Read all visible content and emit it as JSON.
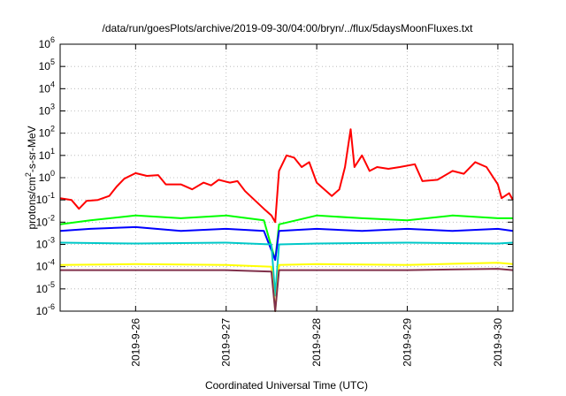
{
  "chart_data": {
    "type": "line",
    "title": "/data/run/goesPlots/archive/2019-09-30/04:00/bryn/../flux/5daysMoonFluxes.txt",
    "xlabel": "Coordinated Universal Time (UTC)",
    "ylabel": {
      "prefix": "protons/cm",
      "sup": "2",
      "suffix": "-s-sr-MeV"
    },
    "yscale": "log",
    "ylim": [
      1e-06,
      1000000.0
    ],
    "y_ticks": [
      {
        "value": 1e-06,
        "base": "10",
        "exp": "-6"
      },
      {
        "value": 1e-05,
        "base": "10",
        "exp": "-5"
      },
      {
        "value": 0.0001,
        "base": "10",
        "exp": "-4"
      },
      {
        "value": 0.001,
        "base": "10",
        "exp": "-3"
      },
      {
        "value": 0.01,
        "base": "10",
        "exp": "-2"
      },
      {
        "value": 0.1,
        "base": "10",
        "exp": "-1"
      },
      {
        "value": 1,
        "base": "10",
        "exp": "0"
      },
      {
        "value": 10.0,
        "base": "10",
        "exp": "1"
      },
      {
        "value": 100.0,
        "base": "10",
        "exp": "2"
      },
      {
        "value": 1000.0,
        "base": "10",
        "exp": "3"
      },
      {
        "value": 10000.0,
        "base": "10",
        "exp": "4"
      },
      {
        "value": 100000.0,
        "base": "10",
        "exp": "5"
      },
      {
        "value": 1000000.0,
        "base": "10",
        "exp": "6"
      }
    ],
    "xlim": [
      "2019-09-25T04:00",
      "2019-09-30T04:00"
    ],
    "x_ticks": [
      {
        "value": "2019-09-26T00:00",
        "label": "2019-9-26"
      },
      {
        "value": "2019-09-27T00:00",
        "label": "2019-9-27"
      },
      {
        "value": "2019-09-28T00:00",
        "label": "2019-9-28"
      },
      {
        "value": "2019-09-29T00:00",
        "label": "2019-9-29"
      },
      {
        "value": "2019-09-30T00:00",
        "label": "2019-9-30"
      }
    ],
    "grid": true,
    "series": [
      {
        "color": "#ff0000",
        "points": [
          [
            "2019-09-25T04:00",
            0.12
          ],
          [
            "2019-09-25T07:00",
            0.1
          ],
          [
            "2019-09-25T09:00",
            0.04
          ],
          [
            "2019-09-25T11:00",
            0.09
          ],
          [
            "2019-09-25T14:00",
            0.1
          ],
          [
            "2019-09-25T17:00",
            0.15
          ],
          [
            "2019-09-25T19:00",
            0.4
          ],
          [
            "2019-09-25T21:00",
            0.9
          ],
          [
            "2019-09-26T00:00",
            1.6
          ],
          [
            "2019-09-26T03:00",
            1.2
          ],
          [
            "2019-09-26T06:00",
            1.3
          ],
          [
            "2019-09-26T08:00",
            0.5
          ],
          [
            "2019-09-26T12:00",
            0.5
          ],
          [
            "2019-09-26T15:00",
            0.3
          ],
          [
            "2019-09-26T18:00",
            0.6
          ],
          [
            "2019-09-26T20:00",
            0.45
          ],
          [
            "2019-09-26T22:00",
            0.8
          ],
          [
            "2019-09-27T01:00",
            0.6
          ],
          [
            "2019-09-27T03:00",
            0.7
          ],
          [
            "2019-09-27T05:00",
            0.25
          ],
          [
            "2019-09-27T07:00",
            0.12
          ],
          [
            "2019-09-27T10:00",
            0.04
          ],
          [
            "2019-09-27T12:00",
            0.02
          ],
          [
            "2019-09-27T13:00",
            0.01
          ],
          [
            "2019-09-27T14:00",
            2
          ],
          [
            "2019-09-27T16:00",
            10
          ],
          [
            "2019-09-27T18:00",
            8
          ],
          [
            "2019-09-27T20:00",
            3
          ],
          [
            "2019-09-27T22:00",
            5
          ],
          [
            "2019-09-28T00:00",
            0.6
          ],
          [
            "2019-09-28T02:00",
            0.3
          ],
          [
            "2019-09-28T04:00",
            0.15
          ],
          [
            "2019-09-28T06:00",
            0.3
          ],
          [
            "2019-09-28T07:30",
            3
          ],
          [
            "2019-09-28T09:00",
            150
          ],
          [
            "2019-09-28T10:00",
            3
          ],
          [
            "2019-09-28T12:00",
            10
          ],
          [
            "2019-09-28T14:00",
            2
          ],
          [
            "2019-09-28T16:00",
            3
          ],
          [
            "2019-09-28T19:00",
            2.5
          ],
          [
            "2019-09-28T22:00",
            3
          ],
          [
            "2019-09-29T02:00",
            4
          ],
          [
            "2019-09-29T04:00",
            0.7
          ],
          [
            "2019-09-29T08:00",
            0.8
          ],
          [
            "2019-09-29T12:00",
            2
          ],
          [
            "2019-09-29T15:00",
            1.5
          ],
          [
            "2019-09-29T18:00",
            5
          ],
          [
            "2019-09-29T21:00",
            3
          ],
          [
            "2019-09-30T00:00",
            0.5
          ],
          [
            "2019-09-30T01:00",
            0.12
          ],
          [
            "2019-09-30T03:00",
            0.2
          ],
          [
            "2019-09-30T04:00",
            0.1
          ]
        ]
      },
      {
        "color": "#00ff00",
        "points": [
          [
            "2019-09-25T04:00",
            0.008
          ],
          [
            "2019-09-25T12:00",
            0.012
          ],
          [
            "2019-09-26T00:00",
            0.02
          ],
          [
            "2019-09-26T12:00",
            0.015
          ],
          [
            "2019-09-27T00:00",
            0.02
          ],
          [
            "2019-09-27T10:00",
            0.012
          ],
          [
            "2019-09-27T13:00",
            0.0002
          ],
          [
            "2019-09-27T14:00",
            0.008
          ],
          [
            "2019-09-28T00:00",
            0.02
          ],
          [
            "2019-09-28T12:00",
            0.015
          ],
          [
            "2019-09-29T00:00",
            0.012
          ],
          [
            "2019-09-29T12:00",
            0.02
          ],
          [
            "2019-09-30T00:00",
            0.015
          ],
          [
            "2019-09-30T04:00",
            0.015
          ]
        ]
      },
      {
        "color": "#0000ff",
        "points": [
          [
            "2019-09-25T04:00",
            0.004
          ],
          [
            "2019-09-25T12:00",
            0.005
          ],
          [
            "2019-09-26T00:00",
            0.006
          ],
          [
            "2019-09-26T12:00",
            0.004
          ],
          [
            "2019-09-27T00:00",
            0.005
          ],
          [
            "2019-09-27T10:00",
            0.004
          ],
          [
            "2019-09-27T13:00",
            0.0002
          ],
          [
            "2019-09-27T14:00",
            0.004
          ],
          [
            "2019-09-28T00:00",
            0.005
          ],
          [
            "2019-09-28T12:00",
            0.004
          ],
          [
            "2019-09-29T00:00",
            0.005
          ],
          [
            "2019-09-29T12:00",
            0.004
          ],
          [
            "2019-09-30T00:00",
            0.005
          ],
          [
            "2019-09-30T04:00",
            0.004
          ]
        ]
      },
      {
        "color": "#00c8c8",
        "points": [
          [
            "2019-09-25T04:00",
            0.0012
          ],
          [
            "2019-09-26T00:00",
            0.0011
          ],
          [
            "2019-09-27T00:00",
            0.0012
          ],
          [
            "2019-09-27T12:00",
            0.001
          ],
          [
            "2019-09-27T13:00",
            5e-06
          ],
          [
            "2019-09-27T14:00",
            0.001
          ],
          [
            "2019-09-28T00:00",
            0.0011
          ],
          [
            "2019-09-29T00:00",
            0.0012
          ],
          [
            "2019-09-30T00:00",
            0.0011
          ],
          [
            "2019-09-30T04:00",
            0.0012
          ]
        ]
      },
      {
        "color": "#ffff00",
        "points": [
          [
            "2019-09-25T04:00",
            0.00012
          ],
          [
            "2019-09-26T00:00",
            0.00013
          ],
          [
            "2019-09-27T00:00",
            0.00012
          ],
          [
            "2019-09-27T12:00",
            0.0001
          ],
          [
            "2019-09-27T13:00",
            1e-06
          ],
          [
            "2019-09-27T14:00",
            0.00012
          ],
          [
            "2019-09-28T00:00",
            0.00013
          ],
          [
            "2019-09-29T00:00",
            0.00012
          ],
          [
            "2019-09-30T00:00",
            0.00015
          ],
          [
            "2019-09-30T04:00",
            0.00013
          ]
        ]
      },
      {
        "color": "#80304a",
        "points": [
          [
            "2019-09-25T04:00",
            7e-05
          ],
          [
            "2019-09-26T00:00",
            7e-05
          ],
          [
            "2019-09-27T00:00",
            7e-05
          ],
          [
            "2019-09-27T12:00",
            6e-05
          ],
          [
            "2019-09-27T13:00",
            1e-06
          ],
          [
            "2019-09-27T14:00",
            7e-05
          ],
          [
            "2019-09-28T00:00",
            7e-05
          ],
          [
            "2019-09-29T00:00",
            7e-05
          ],
          [
            "2019-09-30T00:00",
            8e-05
          ],
          [
            "2019-09-30T04:00",
            7e-05
          ]
        ]
      }
    ]
  }
}
